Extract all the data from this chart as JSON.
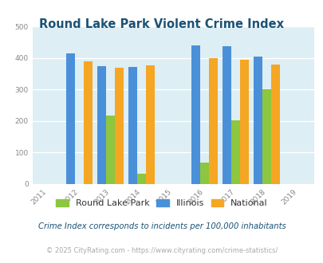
{
  "title": "Round Lake Park Violent Crime Index",
  "years": [
    2012,
    2013,
    2014,
    2016,
    2017,
    2018
  ],
  "x_ticks": [
    2011,
    2012,
    2013,
    2014,
    2015,
    2016,
    2017,
    2018,
    2019
  ],
  "rlp_values": [
    0,
    218,
    32,
    68,
    202,
    300
  ],
  "illinois_values": [
    415,
    373,
    370,
    440,
    438,
    405
  ],
  "national_values": [
    388,
    368,
    376,
    398,
    394,
    380
  ],
  "rlp_color": "#8dc63f",
  "illinois_color": "#4a90d9",
  "national_color": "#f5a623",
  "bar_width": 0.28,
  "ylim": [
    0,
    500
  ],
  "yticks": [
    0,
    100,
    200,
    300,
    400,
    500
  ],
  "bg_color": "#ddeef4",
  "legend_labels": [
    "Round Lake Park",
    "Illinois",
    "National"
  ],
  "footnote1": "Crime Index corresponds to incidents per 100,000 inhabitants",
  "footnote2": "© 2025 CityRating.com - https://www.cityrating.com/crime-statistics/",
  "title_color": "#1a5276",
  "footnote1_color": "#1a5276",
  "footnote2_color": "#aaaaaa",
  "tick_color": "#888888"
}
